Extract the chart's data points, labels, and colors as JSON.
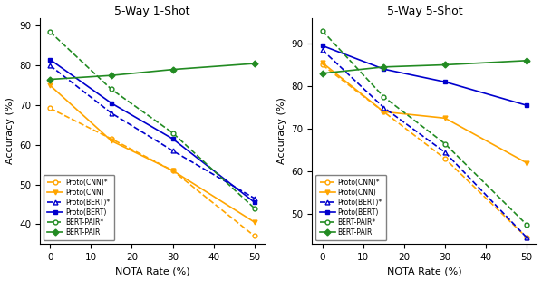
{
  "x": [
    0,
    15,
    30,
    50
  ],
  "plot1": {
    "title": "5-Way 1-Shot",
    "proto_cnn_star": [
      69.2,
      61.5,
      53.5,
      37.0
    ],
    "proto_cnn": [
      75.0,
      61.0,
      53.5,
      40.5
    ],
    "proto_bert_star": [
      80.0,
      68.0,
      58.5,
      46.5
    ],
    "proto_bert": [
      81.5,
      70.5,
      61.5,
      45.5
    ],
    "bert_pair_star": [
      88.5,
      74.0,
      63.0,
      44.0
    ],
    "bert_pair": [
      76.5,
      77.5,
      79.0,
      80.5
    ]
  },
  "plot2": {
    "title": "5-Way 5-Shot",
    "proto_cnn_star": [
      85.0,
      74.0,
      63.0,
      44.5
    ],
    "proto_cnn": [
      85.5,
      74.0,
      72.5,
      62.0
    ],
    "proto_bert_star": [
      88.5,
      75.0,
      64.5,
      44.5
    ],
    "proto_bert": [
      89.5,
      84.0,
      81.0,
      75.5
    ],
    "bert_pair_star": [
      93.0,
      77.5,
      66.5,
      47.5
    ],
    "bert_pair": [
      83.0,
      84.5,
      85.0,
      86.0
    ]
  },
  "nota_rates": [
    0,
    15,
    30,
    50
  ],
  "orange": "#FFA500",
  "blue": "#0000CD",
  "green": "#228B22",
  "xlabel": "NOTA Rate (%)",
  "ylabel": "Accuracy (%)",
  "ylim1": [
    35,
    92
  ],
  "ylim2": [
    43,
    96
  ],
  "yticks1": [
    40,
    50,
    60,
    70,
    80,
    90
  ],
  "yticks2": [
    50,
    60,
    70,
    80,
    90
  ]
}
